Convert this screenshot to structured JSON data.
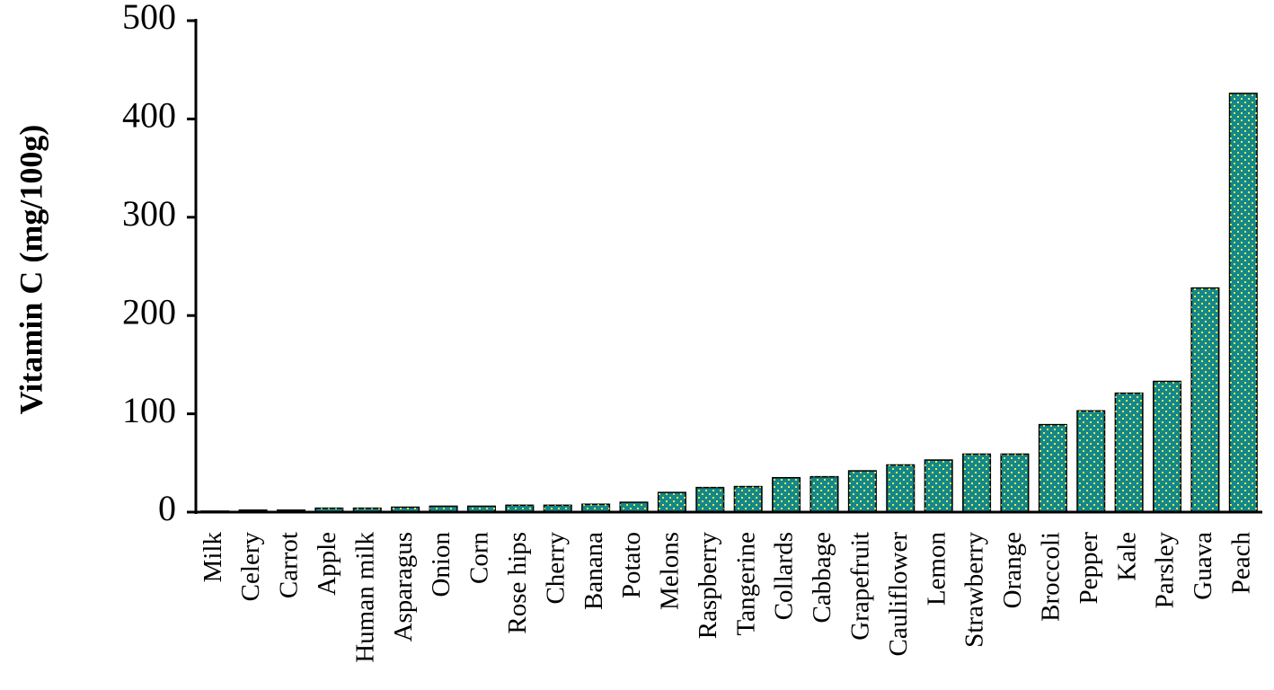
{
  "chart_data": {
    "type": "bar",
    "y_label": "Vitamin  C (mg/100g)",
    "categories": [
      "Milk",
      "Celery",
      "Carrot",
      "Apple",
      "Human milk",
      "Asparagus",
      "Onion",
      "Corn",
      "Rose hips",
      "Cherry",
      "Banana",
      "Potato",
      "Melons",
      "Raspberry",
      "Tangerine",
      "Collards",
      "Cabbage",
      "Grapefruit",
      "Cauliflower",
      "Lemon",
      "Strawberry",
      "Orange",
      "Broccoli",
      "Pepper",
      "Kale",
      "Parsley",
      "Guava",
      "Peach"
    ],
    "values": [
      1,
      2,
      2,
      4,
      4,
      5,
      6,
      6,
      7,
      7,
      8,
      10,
      20,
      25,
      26,
      35,
      36,
      42,
      48,
      53,
      59,
      59,
      89,
      103,
      121,
      133,
      228,
      426
    ],
    "color": "#13878c",
    "ylim": [
      0,
      500
    ],
    "yticks": [
      0,
      100,
      200,
      300,
      400,
      500
    ]
  }
}
